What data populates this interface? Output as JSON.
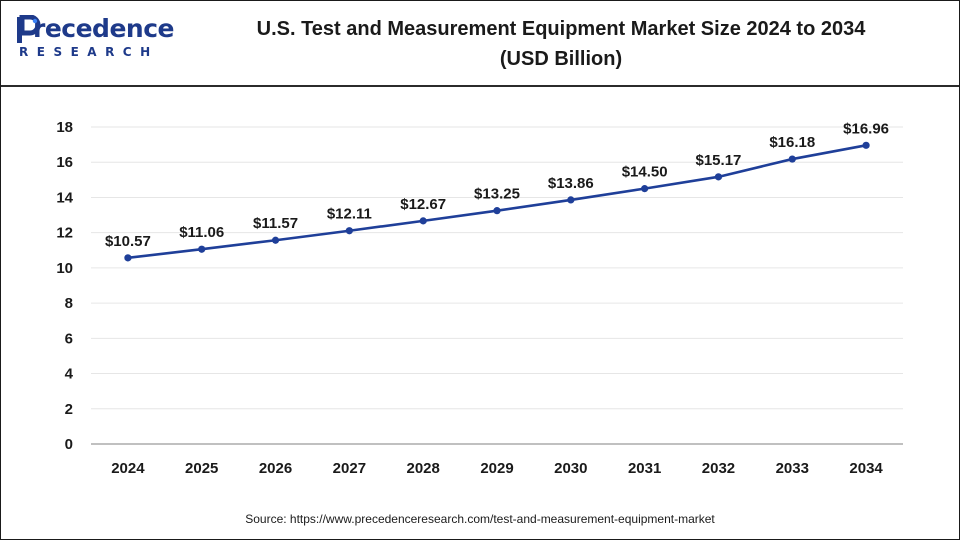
{
  "brand": {
    "name_main": "recedence",
    "name_sub": "RESEARCH",
    "color": "#1e3a8a"
  },
  "header": {
    "title_line1": "U.S. Test and Measurement Equipment Market Size 2024 to 2034",
    "title_line2": "(USD Billion)"
  },
  "footer": {
    "source": "Source: https://www.precedenceresearch.com/test-and-measurement-equipment-market"
  },
  "chart_data": {
    "type": "line",
    "title": "U.S. Test and Measurement Equipment Market Size 2024 to 2034 (USD Billion)",
    "categories": [
      "2024",
      "2025",
      "2026",
      "2027",
      "2028",
      "2029",
      "2030",
      "2031",
      "2032",
      "2033",
      "2034"
    ],
    "series": [
      {
        "values": [
          10.57,
          11.06,
          11.57,
          12.11,
          12.67,
          13.25,
          13.86,
          14.5,
          15.17,
          16.18,
          16.96
        ],
        "labels": [
          "$10.57",
          "$11.06",
          "$11.57",
          "$12.11",
          "$12.67",
          "$13.25",
          "$13.86",
          "$14.50",
          "$15.17",
          "$16.18",
          "$16.96"
        ],
        "color": "#1f3f99"
      }
    ],
    "yticks": [
      "0",
      "2",
      "4",
      "6",
      "8",
      "10",
      "12",
      "14",
      "16",
      "18"
    ],
    "ylim": [
      0,
      18
    ],
    "grid": true,
    "xlabel": "",
    "ylabel": ""
  }
}
